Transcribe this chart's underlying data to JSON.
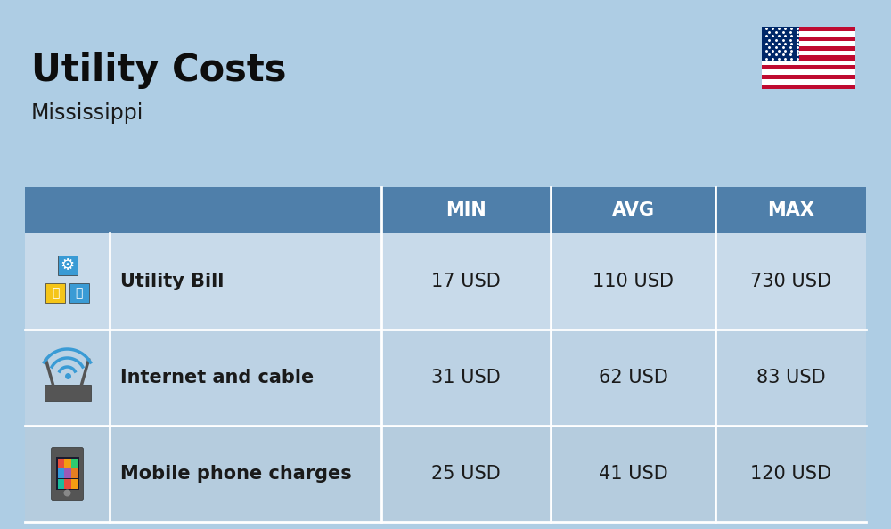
{
  "title": "Utility Costs",
  "subtitle": "Mississippi",
  "background_color": "#aecde4",
  "header_color": "#4f7faa",
  "header_text_color": "#ffffff",
  "row_color_odd": "#c8daea",
  "row_color_even": "#bcd2e4",
  "divider_color": "#ffffff",
  "text_color": "#1a1a1a",
  "title_fontsize": 30,
  "subtitle_fontsize": 17,
  "header_fontsize": 15,
  "cell_fontsize": 15,
  "label_fontsize": 15,
  "columns": [
    "MIN",
    "AVG",
    "MAX"
  ],
  "rows": [
    {
      "icon": "utility",
      "label": "Utility Bill",
      "min": "17 USD",
      "avg": "110 USD",
      "max": "730 USD"
    },
    {
      "icon": "internet",
      "label": "Internet and cable",
      "min": "31 USD",
      "avg": "62 USD",
      "max": "83 USD"
    },
    {
      "icon": "mobile",
      "label": "Mobile phone charges",
      "min": "25 USD",
      "avg": "41 USD",
      "max": "120 USD"
    }
  ]
}
